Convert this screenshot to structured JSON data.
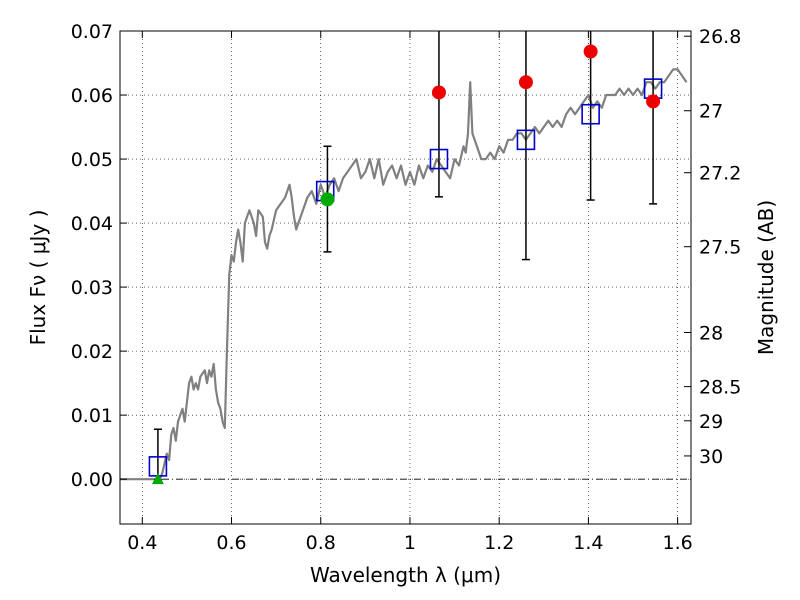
{
  "chart_data": {
    "type": "scatter",
    "title": "",
    "xlabel": "Wavelength  λ (μm)",
    "ylabel": "Flux  Fν  ( μJy )",
    "y2label": "Magnitude (AB)",
    "xlim": [
      0.35,
      1.63
    ],
    "ylim": [
      -0.007,
      0.07
    ],
    "grid": true,
    "xticks": [
      {
        "v": 0.4,
        "label": "0.4"
      },
      {
        "v": 0.6,
        "label": "0.6"
      },
      {
        "v": 0.8,
        "label": "0.8"
      },
      {
        "v": 1.0,
        "label": "1"
      },
      {
        "v": 1.2,
        "label": "1.2"
      },
      {
        "v": 1.4,
        "label": "1.4"
      },
      {
        "v": 1.6,
        "label": "1.6"
      }
    ],
    "yticks": [
      {
        "v": 0.0,
        "label": "0.00"
      },
      {
        "v": 0.01,
        "label": "0.01"
      },
      {
        "v": 0.02,
        "label": "0.02"
      },
      {
        "v": 0.03,
        "label": "0.03"
      },
      {
        "v": 0.04,
        "label": "0.04"
      },
      {
        "v": 0.05,
        "label": "0.05"
      },
      {
        "v": 0.06,
        "label": "0.06"
      },
      {
        "v": 0.07,
        "label": "0.07"
      }
    ],
    "y2ticks": [
      {
        "mag": 26.8,
        "label": "26.8"
      },
      {
        "mag": 27,
        "label": "27"
      },
      {
        "mag": 27.2,
        "label": "27.2"
      },
      {
        "mag": 27.5,
        "label": "27.5"
      },
      {
        "mag": 28,
        "label": "28"
      },
      {
        "mag": 28.5,
        "label": "28.5"
      },
      {
        "mag": 29,
        "label": "29"
      },
      {
        "mag": 30,
        "label": "30"
      }
    ],
    "colors": {
      "sed": "#808080",
      "model": "#0000cc",
      "measured": "#ee0000",
      "green": "#00aa00",
      "errorbar": "#000000"
    },
    "sed_curve": [
      [
        0.35,
        0.0
      ],
      [
        0.44,
        0.0
      ],
      [
        0.445,
        0.001
      ],
      [
        0.455,
        0.004
      ],
      [
        0.46,
        0.003
      ],
      [
        0.465,
        0.007
      ],
      [
        0.47,
        0.008
      ],
      [
        0.475,
        0.006
      ],
      [
        0.48,
        0.009
      ],
      [
        0.485,
        0.01
      ],
      [
        0.49,
        0.011
      ],
      [
        0.495,
        0.009
      ],
      [
        0.5,
        0.012
      ],
      [
        0.505,
        0.015
      ],
      [
        0.51,
        0.016
      ],
      [
        0.515,
        0.014
      ],
      [
        0.52,
        0.015
      ],
      [
        0.525,
        0.014
      ],
      [
        0.53,
        0.016
      ],
      [
        0.54,
        0.017
      ],
      [
        0.545,
        0.015
      ],
      [
        0.55,
        0.017
      ],
      [
        0.555,
        0.016
      ],
      [
        0.56,
        0.018
      ],
      [
        0.565,
        0.014
      ],
      [
        0.57,
        0.012
      ],
      [
        0.575,
        0.011
      ],
      [
        0.58,
        0.009
      ],
      [
        0.585,
        0.008
      ],
      [
        0.59,
        0.021
      ],
      [
        0.595,
        0.032
      ],
      [
        0.6,
        0.035
      ],
      [
        0.605,
        0.034
      ],
      [
        0.61,
        0.037
      ],
      [
        0.615,
        0.039
      ],
      [
        0.62,
        0.037
      ],
      [
        0.625,
        0.034
      ],
      [
        0.63,
        0.04
      ],
      [
        0.64,
        0.042
      ],
      [
        0.645,
        0.041
      ],
      [
        0.65,
        0.04
      ],
      [
        0.655,
        0.038
      ],
      [
        0.66,
        0.042
      ],
      [
        0.67,
        0.041
      ],
      [
        0.675,
        0.037
      ],
      [
        0.68,
        0.036
      ],
      [
        0.685,
        0.038
      ],
      [
        0.69,
        0.039
      ],
      [
        0.7,
        0.042
      ],
      [
        0.71,
        0.043
      ],
      [
        0.72,
        0.044
      ],
      [
        0.73,
        0.046
      ],
      [
        0.735,
        0.044
      ],
      [
        0.74,
        0.041
      ],
      [
        0.745,
        0.039
      ],
      [
        0.75,
        0.04
      ],
      [
        0.76,
        0.042
      ],
      [
        0.77,
        0.044
      ],
      [
        0.78,
        0.045
      ],
      [
        0.79,
        0.043
      ],
      [
        0.8,
        0.046
      ],
      [
        0.81,
        0.044
      ],
      [
        0.82,
        0.046
      ],
      [
        0.83,
        0.047
      ],
      [
        0.84,
        0.045
      ],
      [
        0.85,
        0.047
      ],
      [
        0.86,
        0.048
      ],
      [
        0.87,
        0.049
      ],
      [
        0.88,
        0.05
      ],
      [
        0.89,
        0.047
      ],
      [
        0.9,
        0.048
      ],
      [
        0.91,
        0.05
      ],
      [
        0.92,
        0.047
      ],
      [
        0.93,
        0.05
      ],
      [
        0.94,
        0.046
      ],
      [
        0.95,
        0.048
      ],
      [
        0.96,
        0.049
      ],
      [
        0.97,
        0.047
      ],
      [
        0.98,
        0.049
      ],
      [
        0.99,
        0.046
      ],
      [
        1.0,
        0.048
      ],
      [
        1.01,
        0.046
      ],
      [
        1.02,
        0.049
      ],
      [
        1.03,
        0.047
      ],
      [
        1.04,
        0.049
      ],
      [
        1.05,
        0.048
      ],
      [
        1.06,
        0.05
      ],
      [
        1.07,
        0.049
      ],
      [
        1.08,
        0.048
      ],
      [
        1.09,
        0.047
      ],
      [
        1.1,
        0.05
      ],
      [
        1.11,
        0.049
      ],
      [
        1.12,
        0.052
      ],
      [
        1.125,
        0.051
      ],
      [
        1.13,
        0.054
      ],
      [
        1.135,
        0.062
      ],
      [
        1.14,
        0.054
      ],
      [
        1.15,
        0.052
      ],
      [
        1.16,
        0.05
      ],
      [
        1.17,
        0.05
      ],
      [
        1.18,
        0.051
      ],
      [
        1.19,
        0.05
      ],
      [
        1.2,
        0.052
      ],
      [
        1.21,
        0.051
      ],
      [
        1.22,
        0.053
      ],
      [
        1.23,
        0.053
      ],
      [
        1.24,
        0.054
      ],
      [
        1.25,
        0.054
      ],
      [
        1.26,
        0.053
      ],
      [
        1.27,
        0.054
      ],
      [
        1.28,
        0.055
      ],
      [
        1.29,
        0.054
      ],
      [
        1.3,
        0.055
      ],
      [
        1.31,
        0.056
      ],
      [
        1.32,
        0.055
      ],
      [
        1.33,
        0.056
      ],
      [
        1.34,
        0.055
      ],
      [
        1.35,
        0.057
      ],
      [
        1.36,
        0.058
      ],
      [
        1.37,
        0.057
      ],
      [
        1.38,
        0.058
      ],
      [
        1.39,
        0.059
      ],
      [
        1.4,
        0.06
      ],
      [
        1.41,
        0.058
      ],
      [
        1.42,
        0.059
      ],
      [
        1.43,
        0.058
      ],
      [
        1.44,
        0.06
      ],
      [
        1.45,
        0.06
      ],
      [
        1.46,
        0.06
      ],
      [
        1.47,
        0.061
      ],
      [
        1.48,
        0.06
      ],
      [
        1.49,
        0.061
      ],
      [
        1.5,
        0.06
      ],
      [
        1.51,
        0.061
      ],
      [
        1.52,
        0.06
      ],
      [
        1.53,
        0.062
      ],
      [
        1.54,
        0.062
      ],
      [
        1.55,
        0.061
      ],
      [
        1.56,
        0.062
      ],
      [
        1.57,
        0.062
      ],
      [
        1.58,
        0.063
      ],
      [
        1.59,
        0.064
      ],
      [
        1.6,
        0.064
      ],
      [
        1.61,
        0.063
      ],
      [
        1.62,
        0.062
      ]
    ],
    "model_points": [
      {
        "x": 0.435,
        "y": 0.002
      },
      {
        "x": 0.81,
        "y": 0.045
      },
      {
        "x": 1.065,
        "y": 0.05
      },
      {
        "x": 1.26,
        "y": 0.053
      },
      {
        "x": 1.405,
        "y": 0.057
      },
      {
        "x": 1.545,
        "y": 0.061
      }
    ],
    "measured_points": [
      {
        "x": 1.065,
        "y": 0.0604,
        "ylow": 0.0441,
        "yhigh": 0.07
      },
      {
        "x": 1.26,
        "y": 0.062,
        "ylow": 0.0343,
        "yhigh": 0.07
      },
      {
        "x": 1.405,
        "y": 0.0668,
        "ylow": 0.0436,
        "yhigh": 0.07
      },
      {
        "x": 1.545,
        "y": 0.059,
        "ylow": 0.043,
        "yhigh": 0.07
      }
    ],
    "green_points": [
      {
        "x": 0.815,
        "y": 0.0437,
        "ylow": 0.0355,
        "yhigh": 0.052,
        "marker": "circle"
      },
      {
        "x": 0.435,
        "y": 0.0,
        "ylow": -0.0001,
        "yhigh": 0.0078,
        "marker": "triangle"
      }
    ]
  }
}
